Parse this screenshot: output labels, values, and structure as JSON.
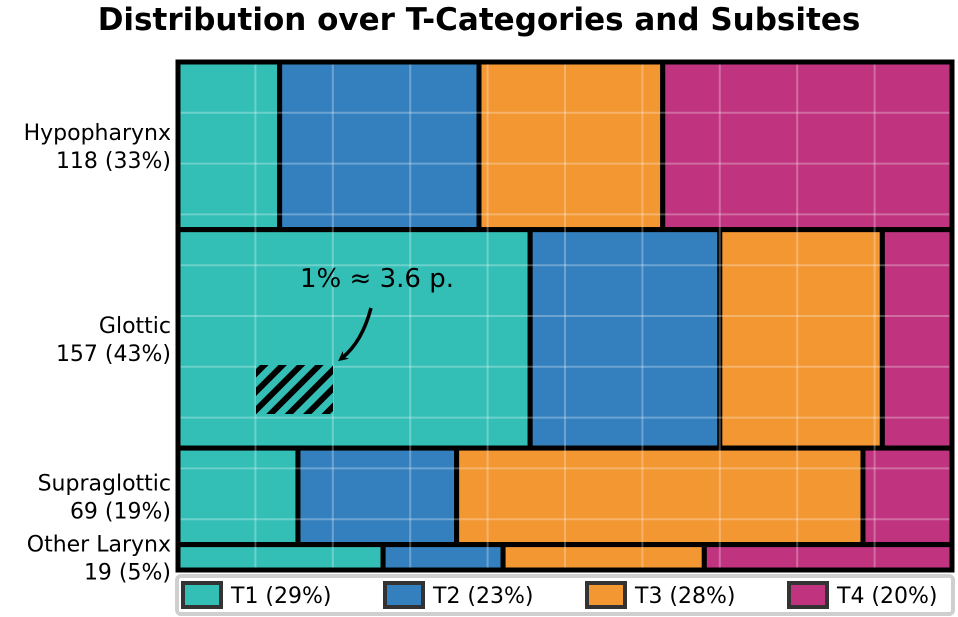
{
  "chart_data": {
    "type": "mosaic",
    "title": "Distribution over T-Categories and Subsites",
    "rows": [
      {
        "label": "Hypopharynx",
        "count_label": "118 (33%)",
        "share": 0.33,
        "splits": [
          0.13,
          0.255,
          0.235,
          0.37
        ]
      },
      {
        "label": "Glottic",
        "count_label": "157 (43%)",
        "share": 0.43,
        "splits": [
          0.455,
          0.245,
          0.21,
          0.09
        ]
      },
      {
        "label": "Supraglottic",
        "count_label": "69 (19%)",
        "share": 0.19,
        "splits": [
          0.155,
          0.205,
          0.525,
          0.115
        ]
      },
      {
        "label": "Other Larynx",
        "count_label": "19 (5%)",
        "share": 0.05,
        "splits": [
          0.265,
          0.155,
          0.26,
          0.32
        ]
      }
    ],
    "categories": [
      {
        "name": "T1",
        "label": "T1 (29%)",
        "color": "#33bfb6"
      },
      {
        "name": "T2",
        "label": "T2 (23%)",
        "color": "#3480bf"
      },
      {
        "name": "T3",
        "label": "T3 (28%)",
        "color": "#f39733"
      },
      {
        "name": "T4",
        "label": "T4 (20%)",
        "color": "#c0347f"
      }
    ],
    "annotation": {
      "text": "1% ≈ 3.6 p.",
      "row": "Glottic",
      "marker_share": 0.01
    },
    "grid": true,
    "legend_position": "bottom"
  }
}
